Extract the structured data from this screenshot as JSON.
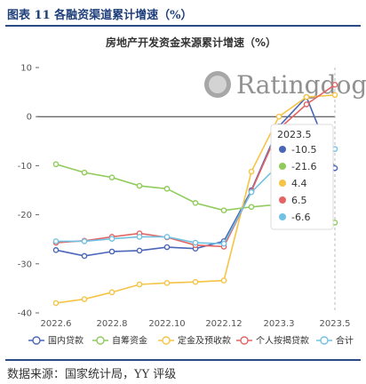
{
  "figure_title": "图表 11 各融资渠道累计增速（%）",
  "source_note": "数据来源：国家统计局，YY 评级",
  "watermark": "Ratingdog",
  "tooltip": {
    "title": "2023.5",
    "rows": [
      "-10.5",
      "-21.6",
      "4.4",
      "6.5",
      "-6.6"
    ]
  },
  "chart_data": {
    "type": "line",
    "title": "房地产开发资金来源累计增速（%）",
    "x": [
      "2022.6",
      "2022.7",
      "2022.8",
      "2022.9",
      "2022.10",
      "2022.11",
      "2022.12",
      "2023.2",
      "2023.3",
      "2023.4",
      "2023.5"
    ],
    "x_tick_labels": [
      "2022.6",
      "2022.8",
      "2022.10",
      "2022.12",
      "2023.3",
      "2023.5"
    ],
    "ylim": [
      -40,
      10
    ],
    "yticks": [
      10,
      0,
      -10,
      -20,
      -30,
      -40
    ],
    "xlabel": "",
    "ylabel": "",
    "grid": false,
    "legend_position": "bottom",
    "series": [
      {
        "name": "国内贷款",
        "color": "#4a66b8",
        "values": [
          -27.2,
          -28.4,
          -27.5,
          -27.3,
          -26.6,
          -26.9,
          -25.4,
          -15.0,
          -2.0,
          4.0,
          -10.5
        ]
      },
      {
        "name": "自筹资金",
        "color": "#8fcb5a",
        "values": [
          -9.7,
          -11.4,
          -12.4,
          -14.1,
          -14.7,
          -17.6,
          -19.1,
          -18.4,
          -17.9,
          -19.7,
          -21.6
        ]
      },
      {
        "name": "定金及预收款",
        "color": "#f6c445",
        "values": [
          -38.0,
          -37.2,
          -35.8,
          -34.2,
          -33.9,
          -33.7,
          -33.4,
          -11.2,
          0.0,
          4.0,
          4.4
        ]
      },
      {
        "name": "个人按揭贷款",
        "color": "#e46464",
        "values": [
          -25.7,
          -25.3,
          -24.5,
          -23.8,
          -24.6,
          -26.2,
          -26.5,
          -15.2,
          -2.5,
          2.5,
          6.5
        ]
      },
      {
        "name": "合计",
        "color": "#71c1e3",
        "values": [
          -25.4,
          -25.4,
          -24.9,
          -24.5,
          -24.5,
          -25.7,
          -25.9,
          -15.4,
          -9.8,
          -6.7,
          -6.6
        ]
      }
    ]
  }
}
